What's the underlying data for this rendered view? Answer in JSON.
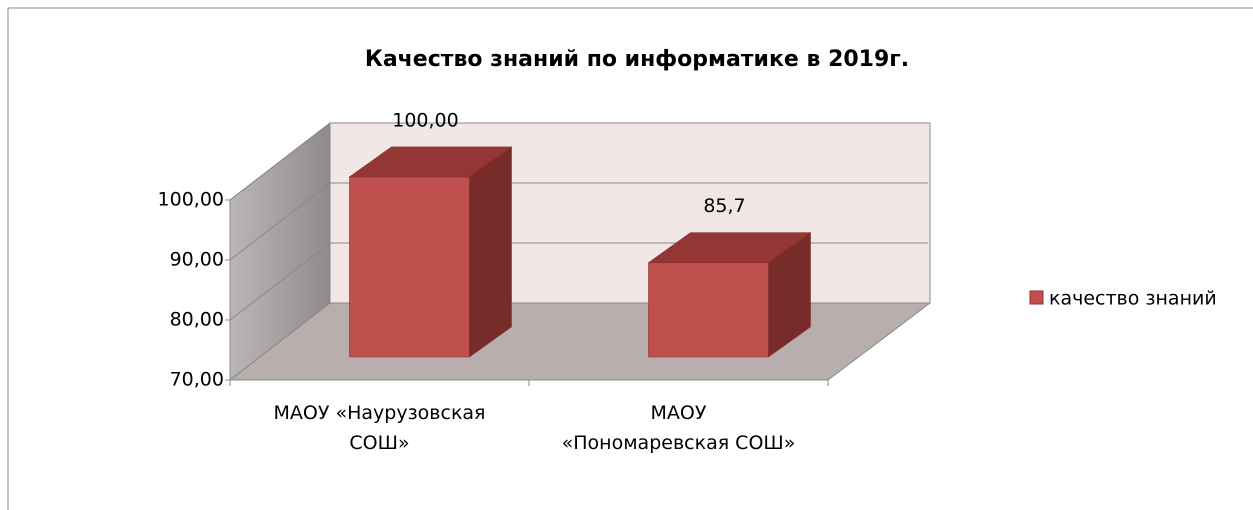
{
  "chart_data": {
    "type": "bar3d",
    "title": "Качество знаний по информатике  в  2019г.",
    "categories": [
      "МАОУ «Наурузовская\nСОШ»",
      "МАОУ\n«Пономаревская СОШ»"
    ],
    "series": [
      {
        "name": "качество знаний",
        "color": "#c0504d",
        "values": [
          100,
          85.7
        ],
        "value_labels": [
          "100,00",
          "85,7"
        ]
      }
    ],
    "ylim": [
      70,
      100
    ],
    "yticks": [
      {
        "value": 70,
        "label": "70,00"
      },
      {
        "value": 80,
        "label": "80,00"
      },
      {
        "value": 90,
        "label": "90,00"
      },
      {
        "value": 100,
        "label": "100,00"
      }
    ],
    "grid": true,
    "legend": "right"
  }
}
